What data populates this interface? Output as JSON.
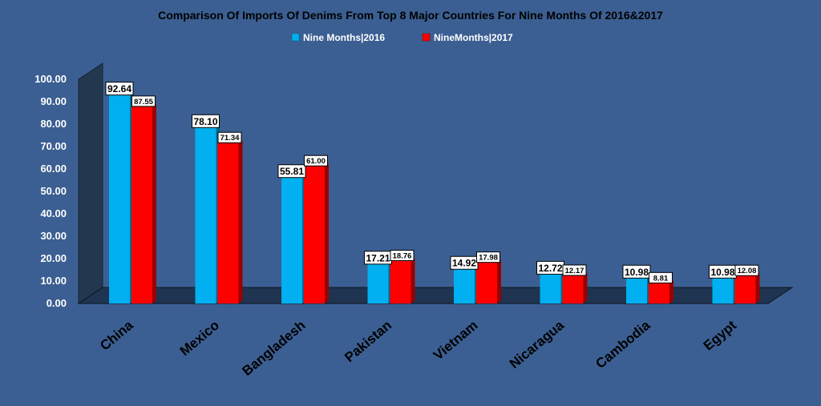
{
  "chart_data": {
    "type": "bar",
    "title": "Comparison Of Imports Of Denims From Top 8 Major Countries For Nine Months Of 2016&2017",
    "categories": [
      "China",
      "Mexico",
      "Bangladesh",
      "Pakistan",
      "Vietnam",
      "Nicaragua",
      "Cambodia",
      "Egypt"
    ],
    "series": [
      {
        "name": "Nine Months|2016",
        "color": "#00b0f0",
        "values": [
          92.64,
          78.1,
          55.81,
          17.21,
          14.92,
          12.72,
          10.98,
          10.98
        ],
        "labels": [
          "92.64",
          "78.10",
          "55.81",
          "17.21",
          "14.92",
          "12.72",
          "10.98",
          "10.98"
        ]
      },
      {
        "name": "NineMonths|2017",
        "color": "#ff0000",
        "values": [
          87.55,
          71.34,
          61.0,
          18.76,
          17.98,
          12.17,
          8.81,
          12.08
        ],
        "labels": [
          "87.55",
          "71.34",
          "61.00",
          "18.76",
          "17.98",
          "12.17",
          "8.81",
          "12.08"
        ]
      }
    ],
    "ylim": [
      0,
      100
    ],
    "yticks": [
      "0.00",
      "10.00",
      "20.00",
      "30.00",
      "40.00",
      "50.00",
      "60.00",
      "70.00",
      "80.00",
      "90.00",
      "100.00"
    ],
    "xlabel": "",
    "ylabel": "",
    "legend_position": "top-center",
    "grid": false
  },
  "colors": {
    "background": "#3b5f92",
    "wall": "#23374f",
    "floor": "#1f3450"
  }
}
